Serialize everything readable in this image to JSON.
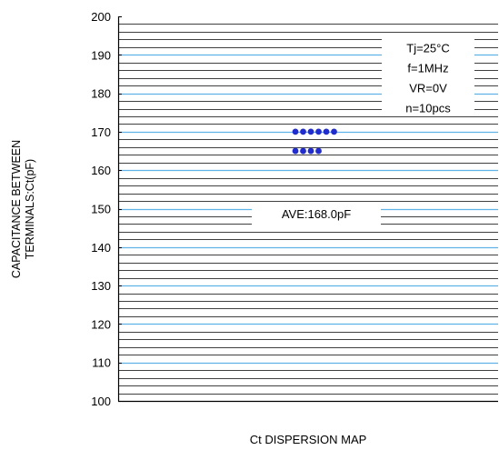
{
  "chart_data": {
    "type": "scatter",
    "title": "",
    "caption": "Ct DISPERSION MAP",
    "ylabel_lines": [
      "CAPACITANCE BETWEEN",
      "TERMINALS:Ct(pF)"
    ],
    "xlabel": "",
    "ylim": [
      100,
      200
    ],
    "yticks": [
      "100",
      "110",
      "120",
      "130",
      "140",
      "150",
      "160",
      "170",
      "180",
      "190",
      "200"
    ],
    "minor_grid_step": 2,
    "grid": true,
    "conditions": [
      "Tj=25°C",
      "f=1MHz",
      "VR=0V",
      "n=10pcs"
    ],
    "average_label": "AVE:168.0pF",
    "points": [
      170,
      170,
      170,
      170,
      170,
      170,
      165,
      165,
      165,
      165
    ],
    "colors": {
      "points": "#1f2bd6",
      "major_grid": "#5fb3e6",
      "minor_grid": "#000000",
      "axis": "#000000"
    }
  }
}
